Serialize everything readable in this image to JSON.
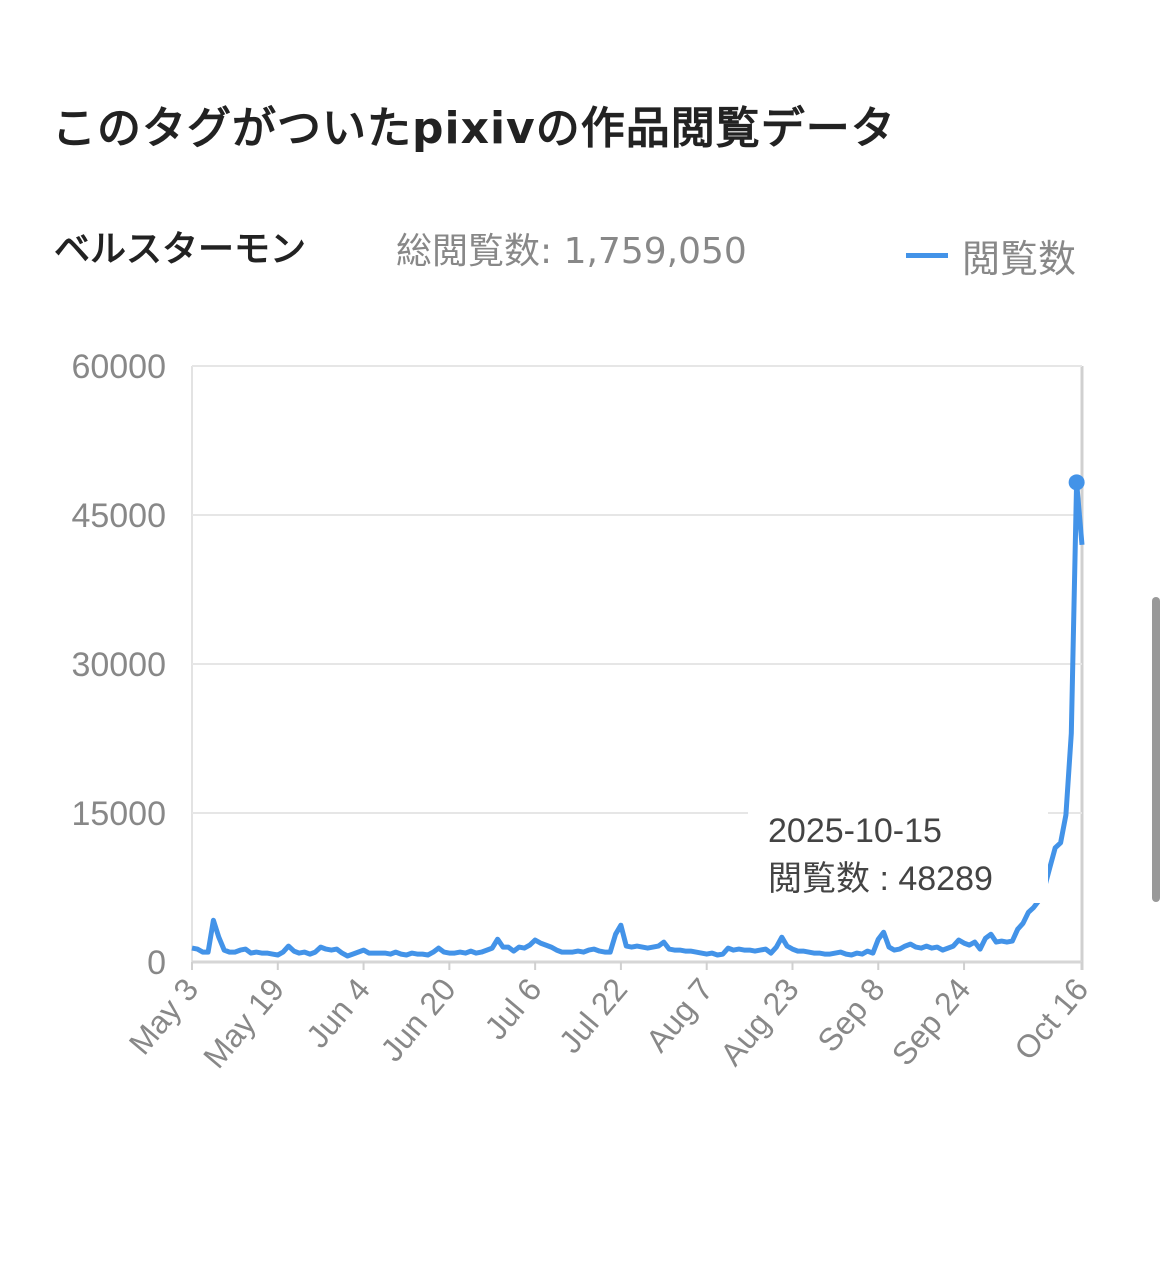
{
  "title": "このタグがついたpixivの作品閲覧データ",
  "tag_name": "ベルスターモン",
  "total_views": "総閲覧数: 1,759,050",
  "legend_label": "閲覧数",
  "colors": {
    "line": "#4393e8",
    "grid": "#e6e6e6",
    "axis_text": "#888888"
  },
  "tooltip": {
    "date": "2025-10-15",
    "value_text": "閲覧数 : 48289"
  },
  "chart_data": {
    "type": "line",
    "title": "",
    "xlabel": "",
    "ylabel": "",
    "x_start": "2025-05-03",
    "x_end": "2025-10-16",
    "x_ticks": [
      "May 3",
      "May 19",
      "Jun 4",
      "Jun 20",
      "Jul 6",
      "Jul 22",
      "Aug 7",
      "Aug 23",
      "Sep 8",
      "Sep 24",
      "Oct 16"
    ],
    "y_ticks": [
      0,
      15000,
      30000,
      45000,
      60000
    ],
    "ylim": [
      0,
      60000
    ],
    "grid": true,
    "legend": "top-right",
    "series": [
      {
        "name": "閲覧数",
        "values": [
          1400,
          1300,
          1000,
          1000,
          4200,
          2500,
          1200,
          1000,
          1000,
          1200,
          1300,
          900,
          1000,
          900,
          900,
          800,
          700,
          1000,
          1600,
          1100,
          900,
          1000,
          800,
          1000,
          1500,
          1300,
          1200,
          1300,
          900,
          600,
          800,
          1000,
          1200,
          900,
          900,
          900,
          900,
          800,
          1000,
          800,
          700,
          900,
          800,
          800,
          700,
          1000,
          1400,
          1000,
          900,
          900,
          1000,
          900,
          1100,
          900,
          1000,
          1200,
          1400,
          2300,
          1500,
          1500,
          1100,
          1500,
          1400,
          1700,
          2200,
          1900,
          1700,
          1500,
          1200,
          1000,
          1000,
          1000,
          1100,
          1000,
          1200,
          1300,
          1100,
          1000,
          1000,
          2800,
          3700,
          1600,
          1500,
          1600,
          1500,
          1400,
          1500,
          1600,
          2000,
          1300,
          1200,
          1200,
          1100,
          1100,
          1000,
          900,
          800,
          900,
          700,
          800,
          1400,
          1200,
          1300,
          1200,
          1200,
          1100,
          1200,
          1300,
          900,
          1500,
          2500,
          1600,
          1300,
          1100,
          1100,
          1000,
          900,
          900,
          800,
          800,
          900,
          1000,
          800,
          700,
          900,
          800,
          1100,
          900,
          2300,
          3000,
          1500,
          1200,
          1300,
          1600,
          1800,
          1500,
          1400,
          1600,
          1400,
          1500,
          1200,
          1400,
          1600,
          2200,
          1900,
          1700,
          2000,
          1300,
          2400,
          2800,
          2000,
          2100,
          2000,
          2100,
          3300,
          3900,
          5000,
          5500,
          6200,
          7500,
          9500,
          11500,
          12000,
          14800,
          23000,
          48289,
          42000
        ]
      }
    ],
    "highlighted_point": {
      "x": "2025-10-15",
      "y": 48289
    }
  }
}
